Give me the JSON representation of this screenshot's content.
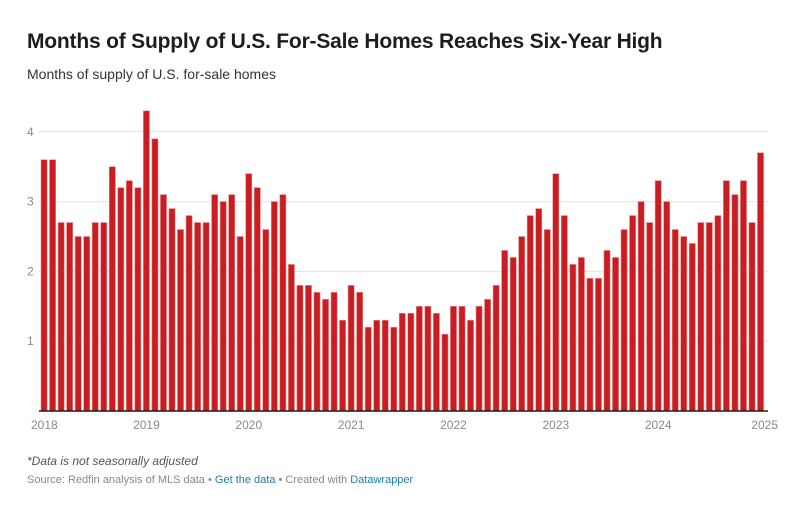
{
  "header": {
    "title": "Months of Supply of U.S. For-Sale Homes Reaches Six-Year High",
    "subtitle": "Months of supply of U.S. for-sale homes"
  },
  "footer": {
    "note": "*Data is not seasonally adjusted",
    "source_prefix": "Source: Redfin analysis of MLS data",
    "separator": " • ",
    "get_data_link": "Get the data",
    "created_with_prefix": "Created with ",
    "datawrapper_link": "Datawrapper"
  },
  "colors": {
    "bar": "#c91d22",
    "bar_edge": "#e68a8d",
    "link": "#1d81a2"
  },
  "chart_data": {
    "type": "bar",
    "title": "Months of Supply of U.S. For-Sale Homes Reaches Six-Year High",
    "subtitle": "Months of supply of U.S. for-sale homes",
    "xlabel": "",
    "ylabel": "",
    "ylim": [
      0,
      4.4
    ],
    "yticks": [
      1,
      2,
      3,
      4
    ],
    "xtick_labels": [
      "2018",
      "2019",
      "2020",
      "2021",
      "2022",
      "2023",
      "2024",
      "2025"
    ],
    "grid": true,
    "legend": "none",
    "x": [
      "2018-01",
      "2018-02",
      "2018-03",
      "2018-04",
      "2018-05",
      "2018-06",
      "2018-07",
      "2018-08",
      "2018-09",
      "2018-10",
      "2018-11",
      "2018-12",
      "2019-01",
      "2019-02",
      "2019-03",
      "2019-04",
      "2019-05",
      "2019-06",
      "2019-07",
      "2019-08",
      "2019-09",
      "2019-10",
      "2019-11",
      "2019-12",
      "2020-01",
      "2020-02",
      "2020-03",
      "2020-04",
      "2020-05",
      "2020-06",
      "2020-07",
      "2020-08",
      "2020-09",
      "2020-10",
      "2020-11",
      "2020-12",
      "2021-01",
      "2021-02",
      "2021-03",
      "2021-04",
      "2021-05",
      "2021-06",
      "2021-07",
      "2021-08",
      "2021-09",
      "2021-10",
      "2021-11",
      "2021-12",
      "2022-01",
      "2022-02",
      "2022-03",
      "2022-04",
      "2022-05",
      "2022-06",
      "2022-07",
      "2022-08",
      "2022-09",
      "2022-10",
      "2022-11",
      "2022-12",
      "2023-01",
      "2023-02",
      "2023-03",
      "2023-04",
      "2023-05",
      "2023-06",
      "2023-07",
      "2023-08",
      "2023-09",
      "2023-10",
      "2023-11",
      "2023-12",
      "2024-01",
      "2024-02",
      "2024-03",
      "2024-04",
      "2024-05",
      "2024-06",
      "2024-07",
      "2024-08",
      "2024-09",
      "2024-10",
      "2024-11",
      "2024-12",
      "2025-01"
    ],
    "values": [
      3.6,
      3.6,
      2.7,
      2.7,
      2.5,
      2.5,
      2.7,
      2.7,
      3.5,
      3.2,
      3.3,
      3.2,
      4.3,
      3.9,
      3.1,
      2.9,
      2.6,
      2.8,
      2.7,
      2.7,
      3.1,
      3.0,
      3.1,
      2.5,
      3.4,
      3.2,
      2.6,
      3.0,
      3.1,
      2.1,
      1.8,
      1.8,
      1.7,
      1.6,
      1.7,
      1.3,
      1.8,
      1.7,
      1.2,
      1.3,
      1.3,
      1.2,
      1.4,
      1.4,
      1.5,
      1.5,
      1.4,
      1.1,
      1.5,
      1.5,
      1.3,
      1.5,
      1.6,
      1.8,
      2.3,
      2.2,
      2.5,
      2.8,
      2.9,
      2.6,
      3.4,
      2.8,
      2.1,
      2.2,
      1.9,
      1.9,
      2.3,
      2.2,
      2.6,
      2.8,
      3.0,
      2.7,
      3.3,
      3.0,
      2.6,
      2.5,
      2.4,
      2.7,
      2.7,
      2.8,
      3.3,
      3.1,
      3.3,
      2.7,
      3.7
    ]
  }
}
